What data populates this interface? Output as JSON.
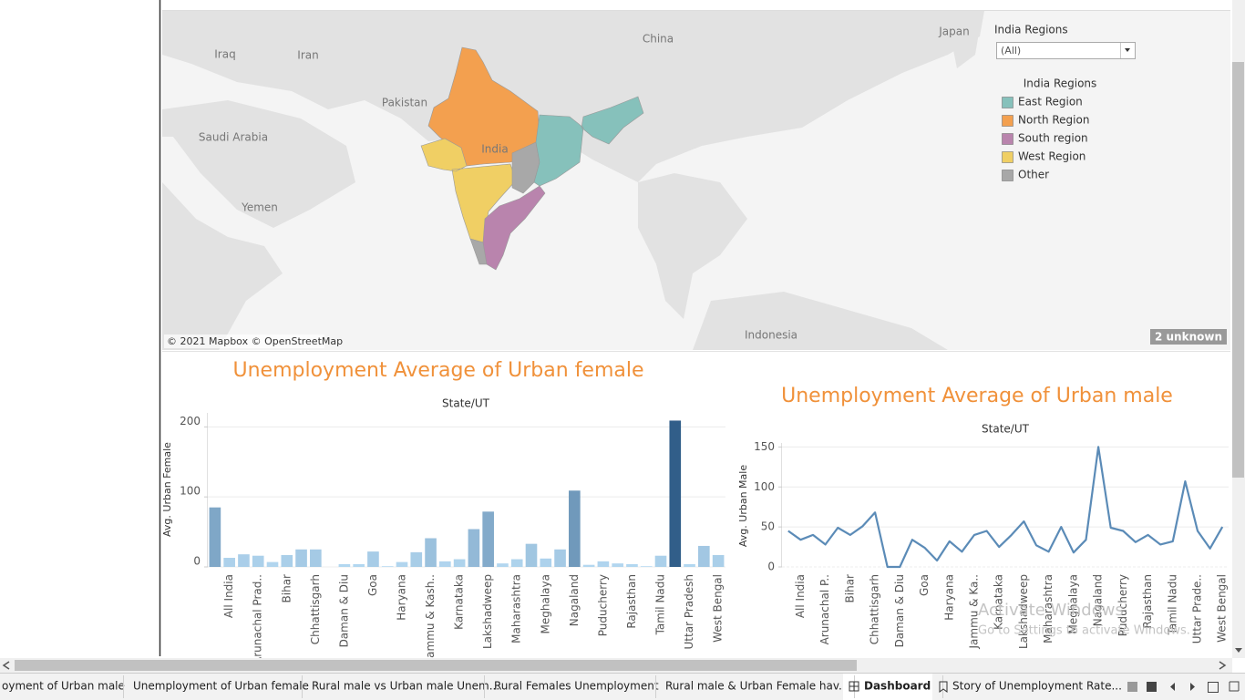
{
  "chart_data": [
    {
      "type": "bar",
      "title": "Unemployment Average  of Urban female",
      "subtitle": "State/UT",
      "y_label": "Avg. Urban Female",
      "title_color": "#f0913a",
      "color_scale": [
        "#b5d9f2",
        "#2a5783"
      ],
      "categories": [
        null,
        "All India",
        null,
        "Arunachal Prad..",
        null,
        "Bihar",
        null,
        "Chhattisgarh",
        null,
        "Daman & Diu",
        null,
        "Goa",
        null,
        "Haryana",
        null,
        "Jammu & Kash..",
        null,
        "Karnataka",
        null,
        "Lakshadweep",
        null,
        "Maharashtra",
        null,
        "Meghalaya",
        null,
        "Nagaland",
        null,
        "Puducherry",
        null,
        "Rajasthan",
        null,
        "Tamil Nadu",
        null,
        "Uttar Pradesh",
        null,
        "West Bengal"
      ],
      "values": [
        85,
        13,
        18,
        16,
        7,
        17,
        25,
        25,
        0,
        4,
        4,
        22,
        1,
        7,
        21,
        41,
        8,
        11,
        54,
        79,
        5,
        11,
        33,
        12,
        25,
        109,
        3,
        8,
        5,
        4,
        1,
        16,
        209,
        4,
        30,
        17
      ],
      "ylim": [
        0,
        220
      ],
      "yticks": [
        0,
        100,
        200
      ],
      "grid": true
    },
    {
      "type": "line",
      "title": "Unemployment Average of Urban male",
      "subtitle": "State/UT",
      "y_label": "Avg. Urban Male",
      "title_color": "#f0913a",
      "color": "#5b8bb7",
      "categories": [
        null,
        "All India",
        null,
        "Arunachal P..",
        null,
        "Bihar",
        null,
        "Chhattisgarh",
        null,
        "Daman & Diu",
        null,
        "Goa",
        null,
        "Haryana",
        null,
        "Jammu & Ka..",
        null,
        "Karnataka",
        null,
        "Lakshadweep",
        null,
        "Maharashtra",
        null,
        "Meghalaya",
        null,
        "Nagaland",
        null,
        "Puducherry",
        null,
        "Rajasthan",
        null,
        "Tamil Nadu",
        null,
        "Uttar Prade..",
        null,
        "West Bengal"
      ],
      "values": [
        45,
        34,
        40,
        28,
        49,
        40,
        51,
        68,
        0,
        0,
        34,
        24,
        8,
        32,
        19,
        40,
        45,
        25,
        40,
        57,
        27,
        19,
        50,
        18,
        34,
        150,
        49,
        45,
        31,
        40,
        28,
        32,
        107,
        45,
        23,
        50
      ],
      "ylim": [
        0,
        155
      ],
      "yticks": [
        0,
        50,
        100,
        150
      ],
      "grid": true
    }
  ],
  "map": {
    "labels": [
      "Iraq",
      "Iran",
      "China",
      "Japan",
      "Pakistan",
      "Saudi Arabia",
      "India",
      "Yemen",
      "Indonesia"
    ],
    "attribution": "© 2021 Mapbox © OpenStreetMap",
    "unknown": "2 unknown"
  },
  "filter": {
    "title": "India Regions",
    "value": "(All)"
  },
  "legend": {
    "title": "India Regions",
    "items": [
      {
        "name": "East Region",
        "color": "#86c1bb"
      },
      {
        "name": "North Region",
        "color": "#f3a04f"
      },
      {
        "name": "South region",
        "color": "#b984ad"
      },
      {
        "name": "West Region",
        "color": "#f0cf64"
      },
      {
        "name": "Other",
        "color": "#a8a8a8"
      }
    ]
  },
  "tabs": [
    "oyment of Urban male",
    "Unemployment of Urban female",
    "Rural male vs Urban male Unem...",
    "Rural Females Unemployment",
    "Rural male & Urban Female hav...",
    "Dashboard",
    "Story of Unemployment Rate..."
  ],
  "watermark": {
    "title": "Activate Windows",
    "text": "Go to Settings to activate Windows."
  }
}
